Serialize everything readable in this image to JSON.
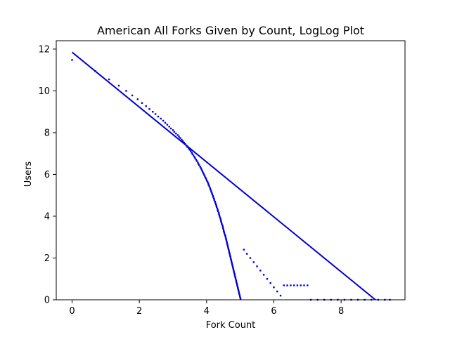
{
  "chart_data": {
    "type": "scatter",
    "title": "American All Forks Given by Count, LogLog Plot",
    "xlabel": "Fork Count",
    "ylabel": "Users",
    "xlim": [
      -0.47,
      9.9
    ],
    "ylim": [
      0,
      12.4
    ],
    "xticks": [
      0,
      2,
      4,
      6,
      8
    ],
    "yticks": [
      0,
      2,
      4,
      6,
      8,
      10,
      12
    ],
    "grid": false,
    "legend": "none",
    "color": "#0000cc",
    "series": [
      {
        "kind": "points",
        "points": [
          [
            0.0,
            11.48
          ],
          [
            0.69,
            10.95
          ],
          [
            1.1,
            10.55
          ],
          [
            1.39,
            10.25
          ],
          [
            1.61,
            10.0
          ],
          [
            1.79,
            9.78
          ],
          [
            1.95,
            9.6
          ],
          [
            2.08,
            9.42
          ],
          [
            2.2,
            9.27
          ],
          [
            2.3,
            9.13
          ],
          [
            2.4,
            9.0
          ],
          [
            2.48,
            8.89
          ],
          [
            2.56,
            8.77
          ],
          [
            2.64,
            8.67
          ],
          [
            2.71,
            8.57
          ],
          [
            2.77,
            8.47
          ],
          [
            2.83,
            8.38
          ],
          [
            2.89,
            8.29
          ],
          [
            2.94,
            8.2
          ],
          [
            3.0,
            8.12
          ],
          [
            3.04,
            8.04
          ],
          [
            3.09,
            7.96
          ],
          [
            3.14,
            7.88
          ],
          [
            3.18,
            7.81
          ],
          [
            3.22,
            7.74
          ],
          [
            3.26,
            7.66
          ],
          [
            3.3,
            7.59
          ],
          [
            3.33,
            7.52
          ],
          [
            3.37,
            7.45
          ],
          [
            3.4,
            7.38
          ],
          [
            3.43,
            7.31
          ],
          [
            3.47,
            7.24
          ],
          [
            3.5,
            7.18
          ],
          [
            3.53,
            7.11
          ],
          [
            3.56,
            7.04
          ],
          [
            3.58,
            6.97
          ],
          [
            3.61,
            6.91
          ],
          [
            3.64,
            6.84
          ],
          [
            3.66,
            6.77
          ],
          [
            3.69,
            6.71
          ],
          [
            3.71,
            6.64
          ],
          [
            3.74,
            6.57
          ],
          [
            3.76,
            6.5
          ],
          [
            3.78,
            6.44
          ],
          [
            3.81,
            6.37
          ],
          [
            3.83,
            6.3
          ],
          [
            3.85,
            6.24
          ],
          [
            3.87,
            6.17
          ],
          [
            3.89,
            6.1
          ],
          [
            3.91,
            6.04
          ],
          [
            3.93,
            5.97
          ],
          [
            3.95,
            5.9
          ],
          [
            3.97,
            5.84
          ],
          [
            3.99,
            5.77
          ],
          [
            4.01,
            5.7
          ],
          [
            4.03,
            5.64
          ],
          [
            4.05,
            5.57
          ],
          [
            4.06,
            5.5
          ],
          [
            4.08,
            5.44
          ],
          [
            4.1,
            5.37
          ],
          [
            4.11,
            5.3
          ],
          [
            4.13,
            5.24
          ],
          [
            4.14,
            5.17
          ],
          [
            4.16,
            5.1
          ],
          [
            4.17,
            5.04
          ],
          [
            4.19,
            4.97
          ],
          [
            4.2,
            4.9
          ],
          [
            4.22,
            4.84
          ],
          [
            4.23,
            4.77
          ],
          [
            4.25,
            4.7
          ],
          [
            4.26,
            4.64
          ],
          [
            4.28,
            4.57
          ],
          [
            4.29,
            4.5
          ],
          [
            4.3,
            4.44
          ],
          [
            4.32,
            4.37
          ],
          [
            4.33,
            4.3
          ],
          [
            4.34,
            4.24
          ],
          [
            4.36,
            4.17
          ],
          [
            4.37,
            4.1
          ],
          [
            4.38,
            4.04
          ],
          [
            4.39,
            3.97
          ],
          [
            4.41,
            3.9
          ],
          [
            4.42,
            3.84
          ],
          [
            4.43,
            3.77
          ],
          [
            4.44,
            3.7
          ],
          [
            4.45,
            3.64
          ],
          [
            4.47,
            3.57
          ],
          [
            4.48,
            3.5
          ],
          [
            4.49,
            3.44
          ],
          [
            4.5,
            3.37
          ],
          [
            4.51,
            3.3
          ],
          [
            4.52,
            3.24
          ],
          [
            4.53,
            3.17
          ],
          [
            4.55,
            3.1
          ],
          [
            4.56,
            3.04
          ],
          [
            4.57,
            2.97
          ],
          [
            4.58,
            2.9
          ],
          [
            4.59,
            2.84
          ],
          [
            4.6,
            2.77
          ],
          [
            4.61,
            2.7
          ],
          [
            4.62,
            2.64
          ],
          [
            4.63,
            2.57
          ],
          [
            4.64,
            2.5
          ],
          [
            4.65,
            2.44
          ],
          [
            4.66,
            2.37
          ],
          [
            4.67,
            2.3
          ],
          [
            4.68,
            2.24
          ],
          [
            4.69,
            2.17
          ],
          [
            4.7,
            2.1
          ],
          [
            4.71,
            2.04
          ],
          [
            4.72,
            1.97
          ],
          [
            4.73,
            1.9
          ],
          [
            4.74,
            1.84
          ],
          [
            4.75,
            1.77
          ],
          [
            4.76,
            1.7
          ],
          [
            4.77,
            1.64
          ],
          [
            4.78,
            1.57
          ],
          [
            4.79,
            1.5
          ],
          [
            4.8,
            1.44
          ],
          [
            4.81,
            1.37
          ],
          [
            4.82,
            1.3
          ],
          [
            4.83,
            1.24
          ],
          [
            4.84,
            1.17
          ],
          [
            4.85,
            1.1
          ],
          [
            4.86,
            1.04
          ],
          [
            4.87,
            0.97
          ],
          [
            4.88,
            0.9
          ],
          [
            4.89,
            0.84
          ],
          [
            4.9,
            0.77
          ],
          [
            4.91,
            0.7
          ],
          [
            4.92,
            0.64
          ],
          [
            4.93,
            0.57
          ],
          [
            4.94,
            0.5
          ],
          [
            4.95,
            0.44
          ],
          [
            4.96,
            0.37
          ],
          [
            4.97,
            0.3
          ],
          [
            4.98,
            0.24
          ],
          [
            4.99,
            0.17
          ],
          [
            5.0,
            0.1
          ],
          [
            5.01,
            0.04
          ],
          [
            5.11,
            2.4
          ],
          [
            5.2,
            2.2
          ],
          [
            5.3,
            2.0
          ],
          [
            5.4,
            1.8
          ],
          [
            5.5,
            1.6
          ],
          [
            5.6,
            1.4
          ],
          [
            5.7,
            1.2
          ],
          [
            5.8,
            1.0
          ],
          [
            5.9,
            0.8
          ],
          [
            6.0,
            0.6
          ],
          [
            6.1,
            0.4
          ],
          [
            6.2,
            0.2
          ],
          [
            6.3,
            0.69
          ],
          [
            6.4,
            0.69
          ],
          [
            6.5,
            0.69
          ],
          [
            6.6,
            0.69
          ],
          [
            6.7,
            0.69
          ],
          [
            6.8,
            0.69
          ],
          [
            6.9,
            0.69
          ],
          [
            7.0,
            0.69
          ],
          [
            7.1,
            0.0
          ],
          [
            7.3,
            0.0
          ],
          [
            7.5,
            0.0
          ],
          [
            7.7,
            0.0
          ],
          [
            7.9,
            0.0
          ],
          [
            8.1,
            0.0
          ],
          [
            8.3,
            0.0
          ],
          [
            8.5,
            0.0
          ],
          [
            8.7,
            0.0
          ],
          [
            8.9,
            0.0
          ],
          [
            9.1,
            0.0
          ],
          [
            9.3,
            0.0
          ],
          [
            9.45,
            0.0
          ]
        ]
      },
      {
        "kind": "fit-line",
        "points": [
          [
            0.0,
            11.85
          ],
          [
            9.02,
            0.0
          ]
        ]
      }
    ]
  }
}
